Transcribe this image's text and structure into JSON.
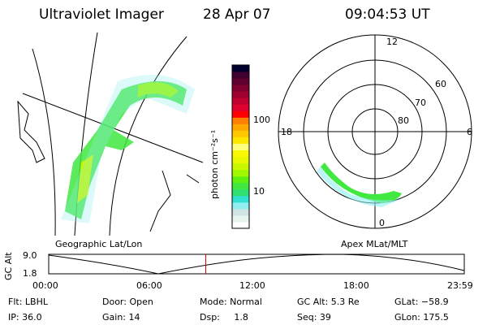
{
  "header": {
    "instrument": "Ultraviolet Imager",
    "date": "28 Apr 07",
    "time": "09:04:53 UT"
  },
  "colorbar": {
    "label": "photon cm⁻²s⁻¹",
    "ticks": [
      "100",
      "10"
    ],
    "colors": [
      "#ffffff",
      "#e8f4ee",
      "#d0e4e4",
      "#90eef0",
      "#30e0d0",
      "#30e070",
      "#40e840",
      "#60f010",
      "#a0f800",
      "#c8f800",
      "#e8f800",
      "#f8f800",
      "#ffff80",
      "#ffe800",
      "#ffc800",
      "#ffa800",
      "#ff8000",
      "#ff0000",
      "#e00030",
      "#c00030",
      "#a00030",
      "#800030",
      "#600030",
      "#400030",
      "#000030"
    ]
  },
  "polar": {
    "mlt_labels": [
      "12",
      "6",
      "0",
      "18"
    ],
    "lat_labels": [
      "60",
      "70",
      "80"
    ]
  },
  "timeline": {
    "left_label": "Geographic Lat/Lon",
    "right_label": "Apex MLat/MLT",
    "ylabel": "GC Alt",
    "yticks": [
      "9.0",
      "1.8"
    ],
    "xticks": [
      "00:00",
      "06:00",
      "12:00",
      "18:00",
      "23:59"
    ],
    "current_time_fraction": 0.378
  },
  "status": {
    "flt": "Flt: LBHL",
    "ip": "IP: 36.0",
    "door": "Door: Open",
    "gain": "Gain: 14",
    "mode": "Mode: Normal",
    "dsp": "Dsp:     1.8",
    "gcalt": "GC Alt: 5.3 Re",
    "seq": "Seq: 39",
    "glat": "GLat: −58.9",
    "glon": "GLon: 175.5"
  }
}
